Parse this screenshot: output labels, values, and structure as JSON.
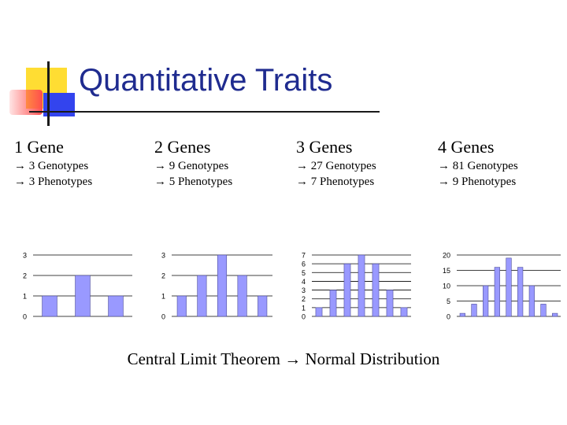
{
  "slide": {
    "title": "Quantitative Traits",
    "columns": [
      {
        "heading": "1 Gene",
        "line1": "→ 3 Genotypes",
        "line2": "→ 3 Phenotypes"
      },
      {
        "heading": "2 Genes",
        "line1": "→ 9 Genotypes",
        "line2": "→ 5 Phenotypes"
      },
      {
        "heading": "3 Genes",
        "line1": "→ 27 Genotypes",
        "line2": "→ 7 Phenotypes"
      },
      {
        "heading": "4 Genes",
        "line1": "→ 81 Genotypes",
        "line2": "→ 9 Phenotypes"
      }
    ],
    "footer_left": "Central Limit Theorem ",
    "footer_arrow": "→",
    "footer_right": " Normal Distribution"
  },
  "colors": {
    "title": "#1f2b8f",
    "bar_fill": "#9999ff",
    "bar_stroke": "#4d4d99",
    "deco_yellow": "#ffdd33",
    "deco_red": "#ff4d4d",
    "deco_blue": "#3344ee"
  },
  "chart_data": [
    {
      "type": "bar",
      "values": [
        1,
        2,
        1
      ],
      "ylim": [
        0,
        3
      ],
      "yticks": [
        "0",
        "1",
        "2",
        "3"
      ]
    },
    {
      "type": "bar",
      "values": [
        1,
        2,
        3,
        2,
        1
      ],
      "ylim": [
        0,
        3
      ],
      "yticks": [
        "0",
        "1",
        "2",
        "3"
      ]
    },
    {
      "type": "bar",
      "values": [
        1,
        3,
        6,
        7,
        6,
        3,
        1
      ],
      "ylim": [
        0,
        7
      ],
      "yticks": [
        "0",
        "1",
        "2",
        "3",
        "4",
        "5",
        "6",
        "7"
      ]
    },
    {
      "type": "bar",
      "values": [
        1,
        4,
        10,
        16,
        19,
        16,
        10,
        4,
        1
      ],
      "ylim": [
        0,
        20
      ],
      "yticks": [
        "0",
        "5",
        "10",
        "15",
        "20"
      ]
    }
  ]
}
